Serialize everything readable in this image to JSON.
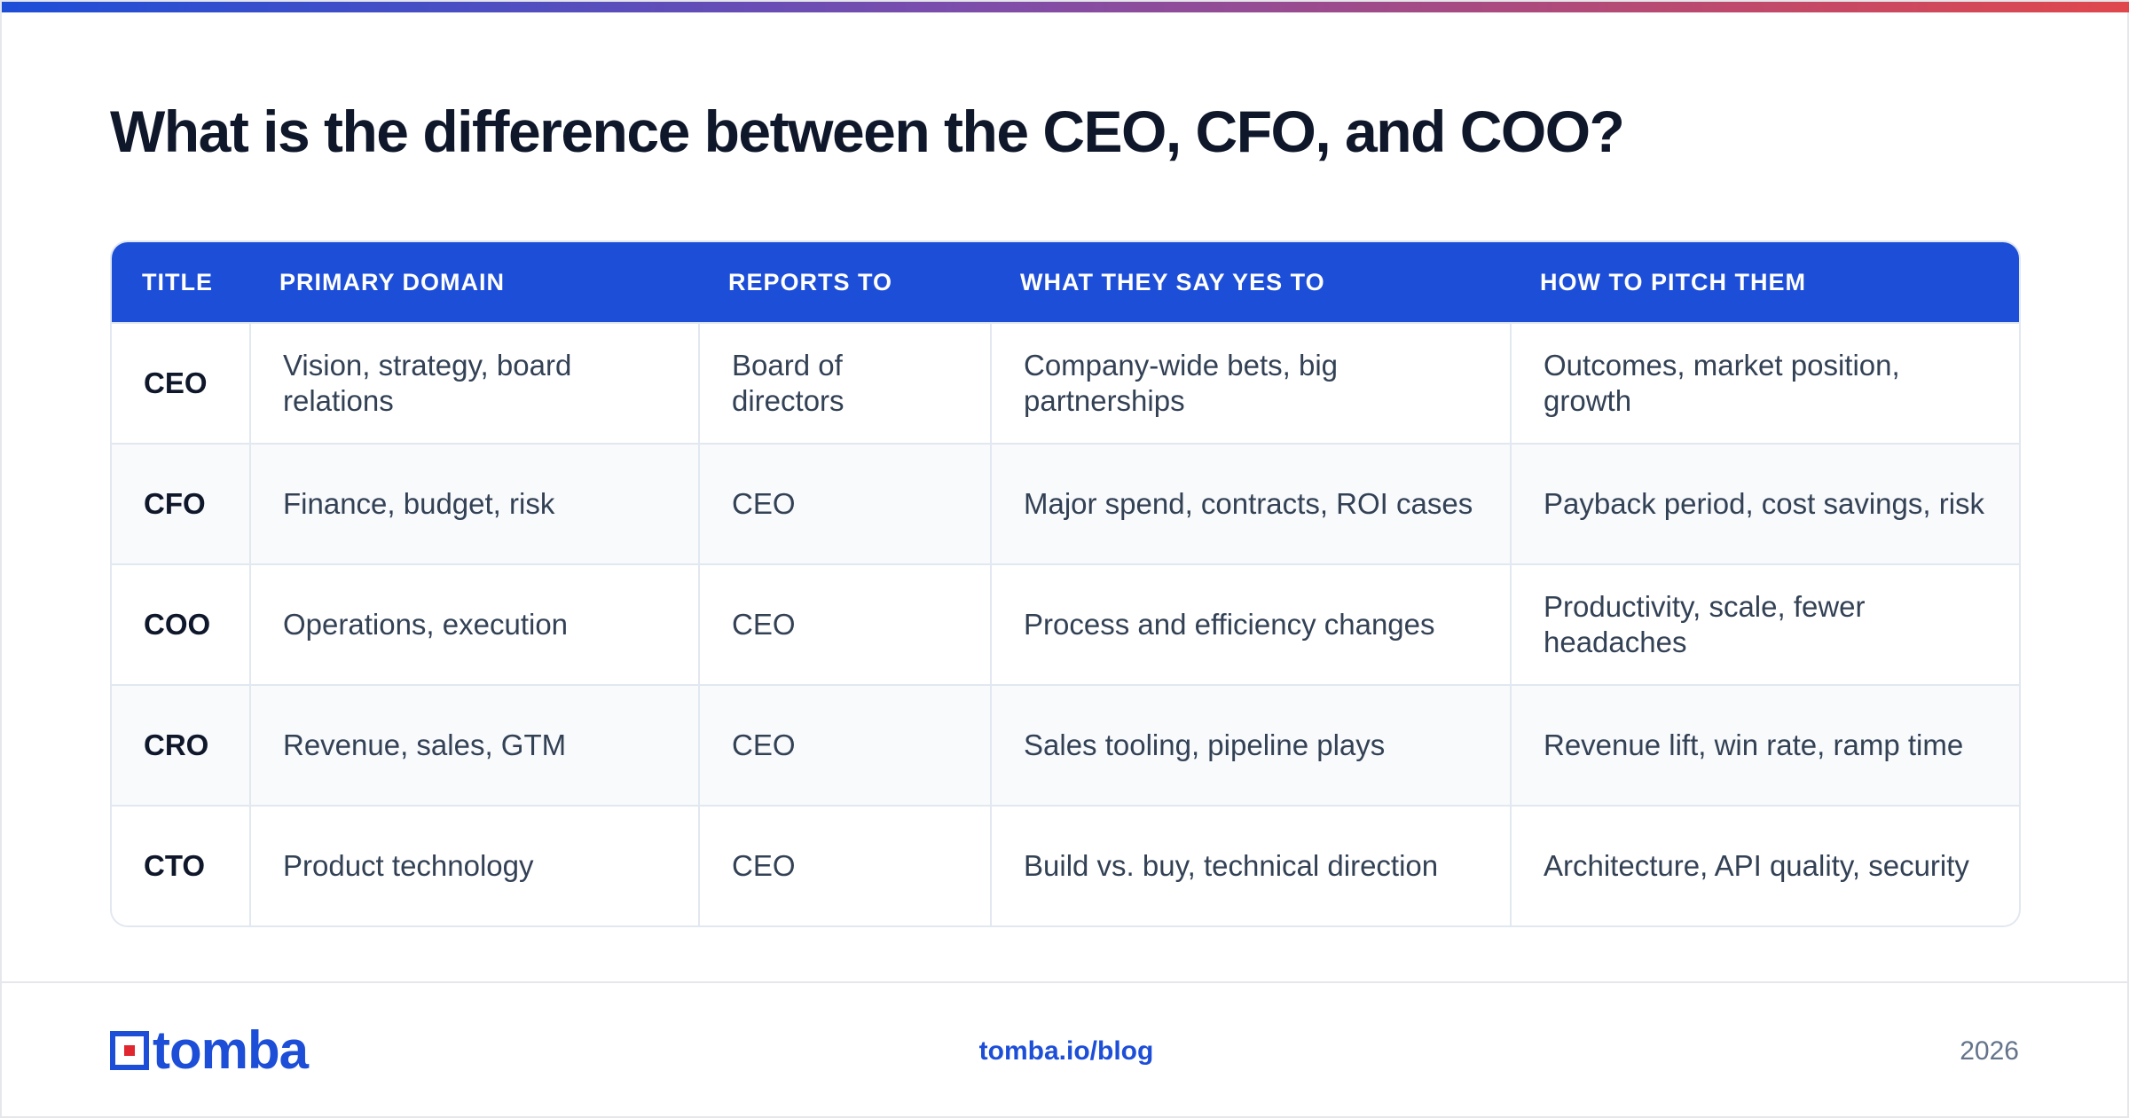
{
  "header": {
    "title": "What is the difference between the CEO, CFO, and COO?"
  },
  "table": {
    "headers": [
      "TITLE",
      "PRIMARY DOMAIN",
      "REPORTS TO",
      "WHAT THEY SAY YES TO",
      "HOW TO PITCH THEM"
    ],
    "rows": [
      [
        "CEO",
        "Vision, strategy, board relations",
        "Board of directors",
        "Company-wide bets, big partnerships",
        "Outcomes, market position, growth"
      ],
      [
        "CFO",
        "Finance, budget, risk",
        "CEO",
        "Major spend, contracts, ROI cases",
        "Payback period, cost savings, risk"
      ],
      [
        "COO",
        "Operations, execution",
        "CEO",
        "Process and efficiency changes",
        "Productivity, scale, fewer headaches"
      ],
      [
        "CRO",
        "Revenue, sales, GTM",
        "CEO",
        "Sales tooling, pipeline plays",
        "Revenue lift, win rate, ramp time"
      ],
      [
        "CTO",
        "Product technology",
        "CEO",
        "Build vs. buy, technical direction",
        "Architecture, API quality, security"
      ]
    ]
  },
  "footer": {
    "logo": "tomba",
    "link": "tomba.io/blog",
    "year": "2026"
  }
}
